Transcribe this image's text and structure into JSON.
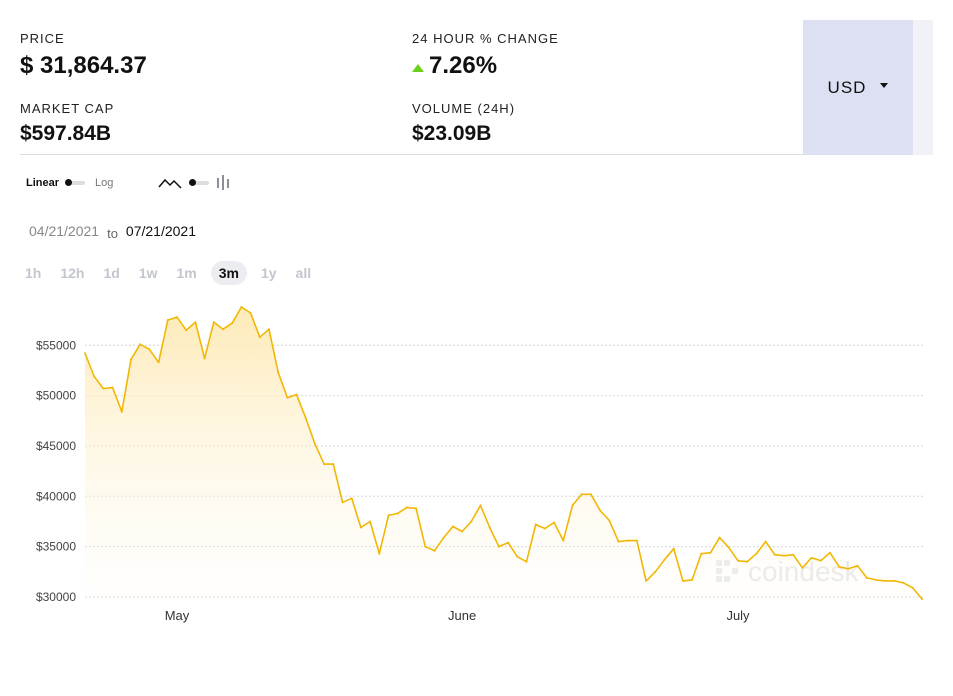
{
  "stats": {
    "price_label": "PRICE",
    "price_value": "$ 31,864.37",
    "change_label": "24 HOUR % CHANGE",
    "change_value": "7.26%",
    "cap_label": "MARKET CAP",
    "cap_value": "$597.84B",
    "volume_label": "VOLUME (24H)",
    "volume_value": "$23.09B"
  },
  "currency": {
    "selected": "USD"
  },
  "scale": {
    "linear": "Linear",
    "log": "Log",
    "selected": "Linear"
  },
  "chart_type": {
    "icons": [
      "line-chart-icon",
      "candlestick-chart-icon"
    ],
    "selected": "line"
  },
  "date_range": {
    "from": "04/21/2021",
    "to_word": "to",
    "to": "07/21/2021"
  },
  "ranges": [
    "1h",
    "12h",
    "1d",
    "1w",
    "1m",
    "3m",
    "1y",
    "all"
  ],
  "active_range": "3m",
  "watermark": "coindesk",
  "colors": {
    "line": "#f2b705",
    "fill": "#fdeec4",
    "change_up": "#6bd21a",
    "currency_bg": "#dde0f3"
  },
  "chart_data": {
    "type": "area",
    "x": [
      "2021-04-21",
      "2021-04-22",
      "2021-04-23",
      "2021-04-24",
      "2021-04-25",
      "2021-04-26",
      "2021-04-27",
      "2021-04-28",
      "2021-04-29",
      "2021-04-30",
      "2021-05-01",
      "2021-05-02",
      "2021-05-03",
      "2021-05-04",
      "2021-05-05",
      "2021-05-06",
      "2021-05-07",
      "2021-05-08",
      "2021-05-09",
      "2021-05-10",
      "2021-05-11",
      "2021-05-12",
      "2021-05-13",
      "2021-05-14",
      "2021-05-15",
      "2021-05-16",
      "2021-05-17",
      "2021-05-18",
      "2021-05-19",
      "2021-05-20",
      "2021-05-21",
      "2021-05-22",
      "2021-05-23",
      "2021-05-24",
      "2021-05-25",
      "2021-05-26",
      "2021-05-27",
      "2021-05-28",
      "2021-05-29",
      "2021-05-30",
      "2021-05-31",
      "2021-06-01",
      "2021-06-02",
      "2021-06-03",
      "2021-06-04",
      "2021-06-05",
      "2021-06-06",
      "2021-06-07",
      "2021-06-08",
      "2021-06-09",
      "2021-06-10",
      "2021-06-11",
      "2021-06-12",
      "2021-06-13",
      "2021-06-14",
      "2021-06-15",
      "2021-06-16",
      "2021-06-17",
      "2021-06-18",
      "2021-06-19",
      "2021-06-20",
      "2021-06-21",
      "2021-06-22",
      "2021-06-23",
      "2021-06-24",
      "2021-06-25",
      "2021-06-26",
      "2021-06-27",
      "2021-06-28",
      "2021-06-29",
      "2021-06-30",
      "2021-07-01",
      "2021-07-02",
      "2021-07-03",
      "2021-07-04",
      "2021-07-05",
      "2021-07-06",
      "2021-07-07",
      "2021-07-08",
      "2021-07-09",
      "2021-07-10",
      "2021-07-11",
      "2021-07-12",
      "2021-07-13",
      "2021-07-14",
      "2021-07-15",
      "2021-07-16",
      "2021-07-17",
      "2021-07-18",
      "2021-07-19",
      "2021-07-20",
      "2021-07-21"
    ],
    "values": [
      54200,
      51900,
      50700,
      50800,
      48400,
      53600,
      55100,
      54600,
      53300,
      57500,
      57800,
      56500,
      57300,
      53700,
      57300,
      56600,
      57200,
      58800,
      58200,
      55800,
      56600,
      52300,
      49800,
      50100,
      47800,
      45200,
      43200,
      43200,
      39400,
      39800,
      36900,
      37500,
      34300,
      38100,
      38300,
      38900,
      38800,
      35000,
      34600,
      35900,
      37000,
      36500,
      37500,
      39100,
      36900,
      35000,
      35400,
      34000,
      33500,
      37200,
      36800,
      37400,
      35600,
      39100,
      40200,
      40200,
      38600,
      37600,
      35500,
      35600,
      35600,
      31600,
      32500,
      33700,
      34800,
      31600,
      31700,
      34300,
      34400,
      35900,
      34900,
      33600,
      33500,
      34300,
      35500,
      34200,
      34100,
      34200,
      32900,
      33900,
      33600,
      34400,
      33000,
      32800,
      33100,
      31900,
      31700,
      31600,
      31600,
      31400,
      30900,
      29800
    ],
    "xtick_labels": [
      "May",
      "June",
      "July"
    ],
    "xtick_values": [
      "2021-05-01",
      "2021-06-01",
      "2021-07-01"
    ],
    "yticks": [
      30000,
      35000,
      40000,
      45000,
      50000,
      55000
    ],
    "ytick_labels": [
      "$30000",
      "$35000",
      "$40000",
      "$45000",
      "$50000",
      "$55000"
    ],
    "ylim": [
      29800,
      58800
    ],
    "grid": "horizontal-dotted",
    "title": "",
    "xlabel": "",
    "ylabel": ""
  }
}
